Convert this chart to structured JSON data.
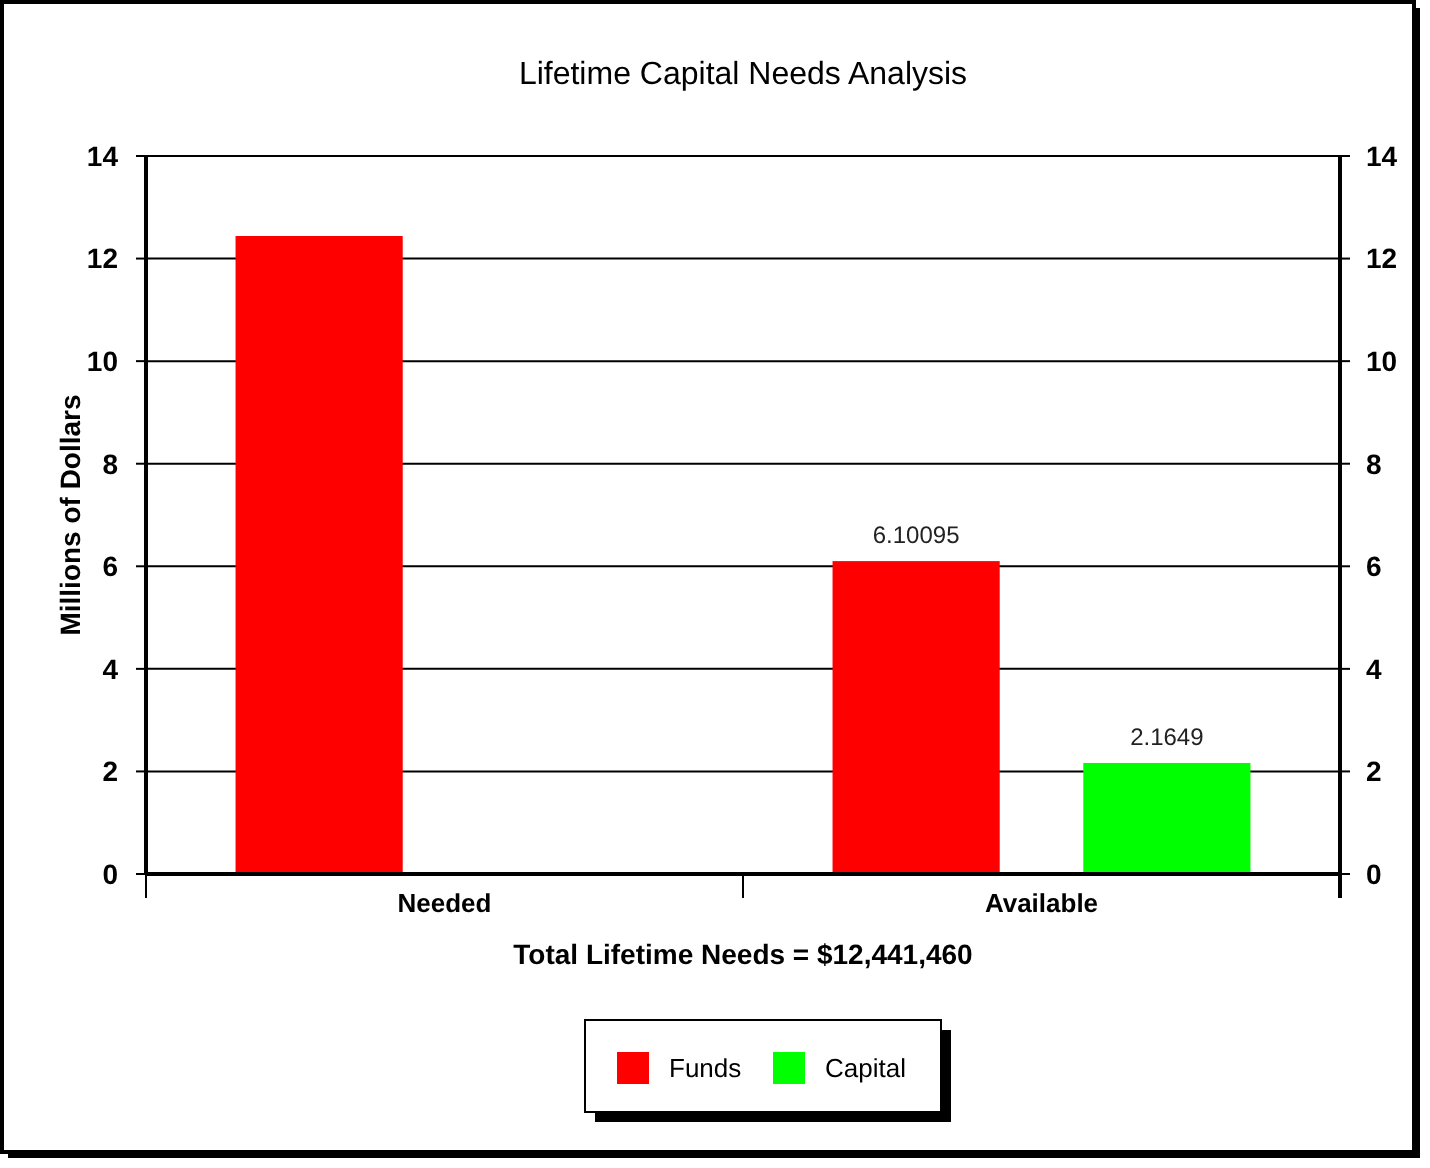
{
  "chart_data": {
    "type": "bar",
    "title": "Lifetime Capital Needs Analysis",
    "xlabel": "Total Lifetime Needs = $12,441,460",
    "ylabel": "Millions of Dollars",
    "categories": [
      "Needed",
      "Available"
    ],
    "series": [
      {
        "name": "Funds",
        "color": "#ff0000",
        "values": [
          12.44,
          6.10095
        ],
        "value_labels": [
          null,
          "6.10095"
        ]
      },
      {
        "name": "Capital",
        "color": "#00ff00",
        "values": [
          0,
          2.1649
        ],
        "value_labels": [
          null,
          "2.1649"
        ]
      }
    ],
    "ylim": [
      0,
      14
    ],
    "yticks": [
      0,
      2,
      4,
      6,
      8,
      10,
      12,
      14
    ],
    "y2lim": [
      0,
      14
    ],
    "y2ticks": [
      0,
      2,
      4,
      6,
      8,
      10,
      12,
      14
    ],
    "grid": "y",
    "legend": "bottom"
  }
}
